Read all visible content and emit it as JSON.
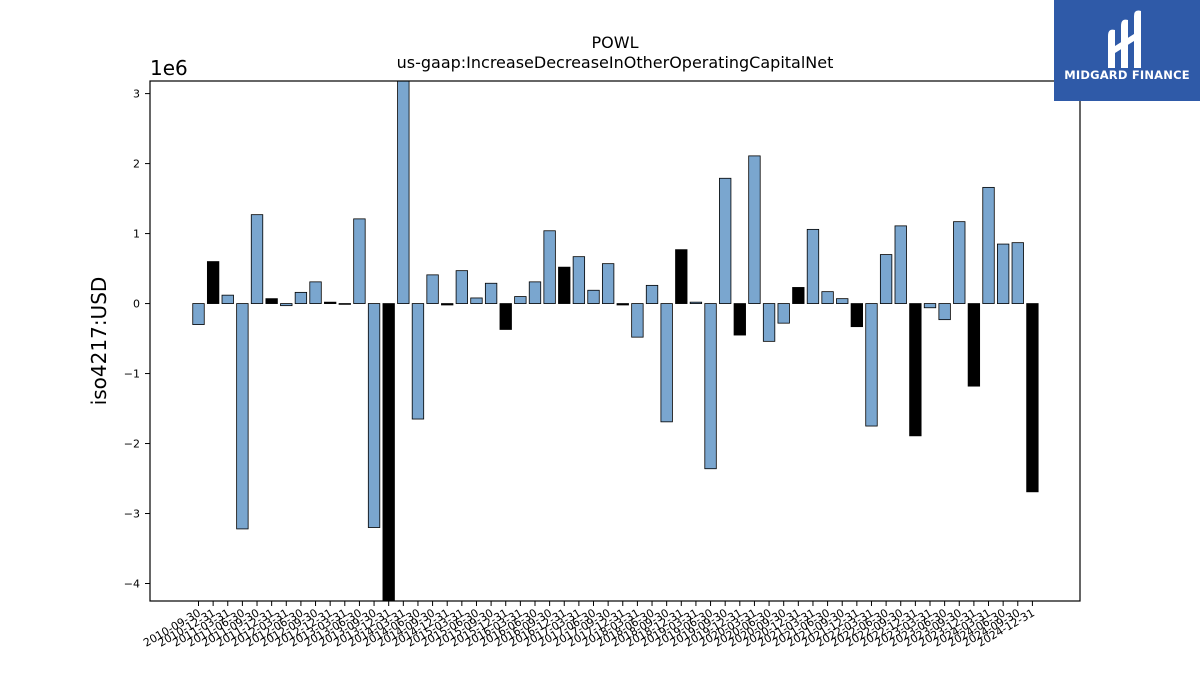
{
  "chart_data": {
    "type": "bar",
    "title": "POWL",
    "subtitle": "us-gaap:IncreaseDecreaseInOtherOperatingCapitalNet",
    "ylabel": "iso4217:USD",
    "xlabel": "",
    "y_offset_label": "1e6",
    "ylim": [
      -4.25,
      3.18
    ],
    "yticks": [
      -4,
      -3,
      -2,
      -1,
      0,
      1,
      2,
      3
    ],
    "ytick_labels": [
      "−4",
      "−3",
      "−2",
      "−1",
      "0",
      "1",
      "2",
      "3"
    ],
    "categories": [
      "2010-09-30",
      "2010-12-31",
      "2011-03-31",
      "2011-06-30",
      "2011-09-30",
      "2011-12-31",
      "2012-03-31",
      "2012-06-30",
      "2012-09-30",
      "2012-12-31",
      "2013-03-31",
      "2013-06-30",
      "2013-09-30",
      "2013-12-31",
      "2014-03-31",
      "2014-06-30",
      "2014-09-30",
      "2014-12-31",
      "2015-03-31",
      "2015-06-30",
      "2015-09-30",
      "2015-12-31",
      "2016-03-31",
      "2016-06-30",
      "2016-09-30",
      "2016-12-31",
      "2017-03-31",
      "2017-06-30",
      "2017-09-30",
      "2017-12-31",
      "2018-03-31",
      "2018-06-30",
      "2018-09-30",
      "2018-12-31",
      "2019-03-31",
      "2019-06-30",
      "2019-09-30",
      "2019-12-31",
      "2020-03-31",
      "2020-06-30",
      "2020-09-30",
      "2020-12-31",
      "2021-03-31",
      "2021-06-30",
      "2021-09-30",
      "2021-12-31",
      "2022-03-31",
      "2022-06-30",
      "2022-09-30",
      "2022-12-31",
      "2023-03-31",
      "2023-06-30",
      "2023-09-30",
      "2023-12-31",
      "2024-03-31",
      "2024-06-30",
      "2024-09-30",
      "2024-12-31"
    ],
    "values": [
      -0.3,
      0.6,
      0.12,
      -3.22,
      1.27,
      0.07,
      -0.03,
      0.16,
      0.31,
      0.02,
      -0.01,
      1.21,
      -3.2,
      -4.25,
      3.2,
      -1.65,
      0.41,
      -0.02,
      0.47,
      0.08,
      0.29,
      -0.37,
      0.1,
      0.31,
      1.04,
      0.52,
      0.67,
      0.19,
      0.57,
      -0.02,
      -0.48,
      0.26,
      -1.69,
      0.77,
      0.02,
      -2.36,
      1.79,
      -0.45,
      2.11,
      -0.54,
      -0.28,
      0.23,
      1.06,
      0.17,
      0.07,
      -0.33,
      -1.75,
      0.7,
      1.11,
      -1.89,
      -0.06,
      -0.23,
      1.17,
      -1.18,
      1.66,
      0.85,
      0.87,
      -2.69
    ],
    "bar_colors": [
      "#7aa6cf",
      "#000000",
      "#7aa6cf",
      "#7aa6cf",
      "#7aa6cf",
      "#000000",
      "#7aa6cf",
      "#7aa6cf",
      "#7aa6cf",
      "#000000",
      "#7aa6cf",
      "#7aa6cf",
      "#7aa6cf",
      "#000000",
      "#7aa6cf",
      "#7aa6cf",
      "#7aa6cf",
      "#000000",
      "#7aa6cf",
      "#7aa6cf",
      "#7aa6cf",
      "#000000",
      "#7aa6cf",
      "#7aa6cf",
      "#7aa6cf",
      "#000000",
      "#7aa6cf",
      "#7aa6cf",
      "#7aa6cf",
      "#000000",
      "#7aa6cf",
      "#7aa6cf",
      "#7aa6cf",
      "#000000",
      "#7aa6cf",
      "#7aa6cf",
      "#7aa6cf",
      "#000000",
      "#7aa6cf",
      "#7aa6cf",
      "#7aa6cf",
      "#000000",
      "#7aa6cf",
      "#7aa6cf",
      "#7aa6cf",
      "#000000",
      "#7aa6cf",
      "#7aa6cf",
      "#7aa6cf",
      "#000000",
      "#7aa6cf",
      "#7aa6cf",
      "#7aa6cf",
      "#000000",
      "#7aa6cf",
      "#7aa6cf",
      "#7aa6cf",
      "#000000"
    ],
    "grid": false,
    "legend": "none"
  },
  "logo": {
    "text": "MIDGARD FINANCE",
    "background": "#2f5aa8",
    "icon": "midgard-logo-icon"
  }
}
